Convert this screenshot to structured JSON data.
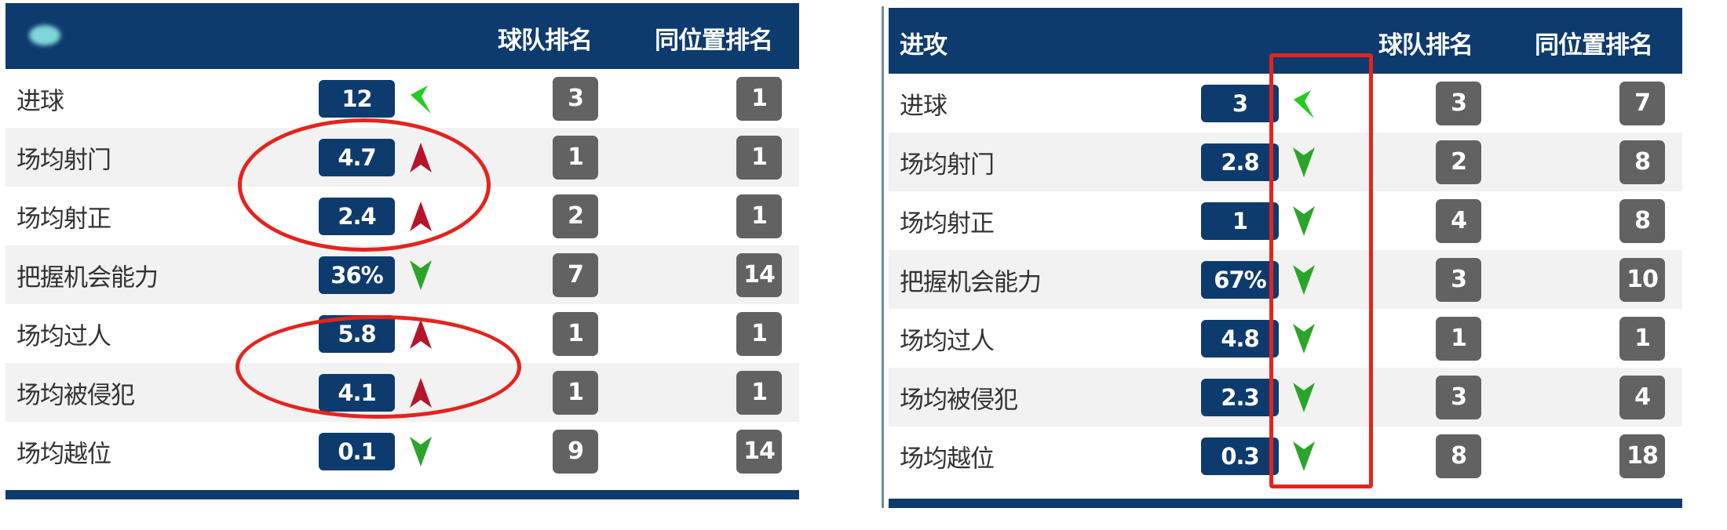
{
  "colors": {
    "header": "#0e3b6e",
    "badge": "#0e3b6e",
    "rank": "#626262",
    "up": "#b5152b",
    "down": "#2aa52a",
    "level": "#22cc22",
    "annotation": "#e5231d"
  },
  "left": {
    "title": "",
    "col_team": "球队排名",
    "col_pos": "同位置排名",
    "rows": [
      {
        "label": "进球",
        "value": "12",
        "trend": "level",
        "team": "3",
        "pos": "1"
      },
      {
        "label": "场均射门",
        "value": "4.7",
        "trend": "up",
        "team": "1",
        "pos": "1"
      },
      {
        "label": "场均射正",
        "value": "2.4",
        "trend": "up",
        "team": "2",
        "pos": "1"
      },
      {
        "label": "把握机会能力",
        "value": "36%",
        "trend": "down",
        "team": "7",
        "pos": "14"
      },
      {
        "label": "场均过人",
        "value": "5.8",
        "trend": "up",
        "team": "1",
        "pos": "1"
      },
      {
        "label": "场均被侵犯",
        "value": "4.1",
        "trend": "up",
        "team": "1",
        "pos": "1"
      },
      {
        "label": "场均越位",
        "value": "0.1",
        "trend": "down",
        "team": "9",
        "pos": "14"
      }
    ]
  },
  "right": {
    "title": "进攻",
    "col_team": "球队排名",
    "col_pos": "同位置排名",
    "rows": [
      {
        "label": "进球",
        "value": "3",
        "trend": "level",
        "team": "3",
        "pos": "7"
      },
      {
        "label": "场均射门",
        "value": "2.8",
        "trend": "down",
        "team": "2",
        "pos": "8"
      },
      {
        "label": "场均射正",
        "value": "1",
        "trend": "down",
        "team": "4",
        "pos": "8"
      },
      {
        "label": "把握机会能力",
        "value": "67%",
        "trend": "down",
        "team": "3",
        "pos": "10"
      },
      {
        "label": "场均过人",
        "value": "4.8",
        "trend": "down",
        "team": "1",
        "pos": "1"
      },
      {
        "label": "场均被侵犯",
        "value": "2.3",
        "trend": "down",
        "team": "3",
        "pos": "4"
      },
      {
        "label": "场均越位",
        "value": "0.3",
        "trend": "down",
        "team": "8",
        "pos": "18"
      }
    ]
  }
}
